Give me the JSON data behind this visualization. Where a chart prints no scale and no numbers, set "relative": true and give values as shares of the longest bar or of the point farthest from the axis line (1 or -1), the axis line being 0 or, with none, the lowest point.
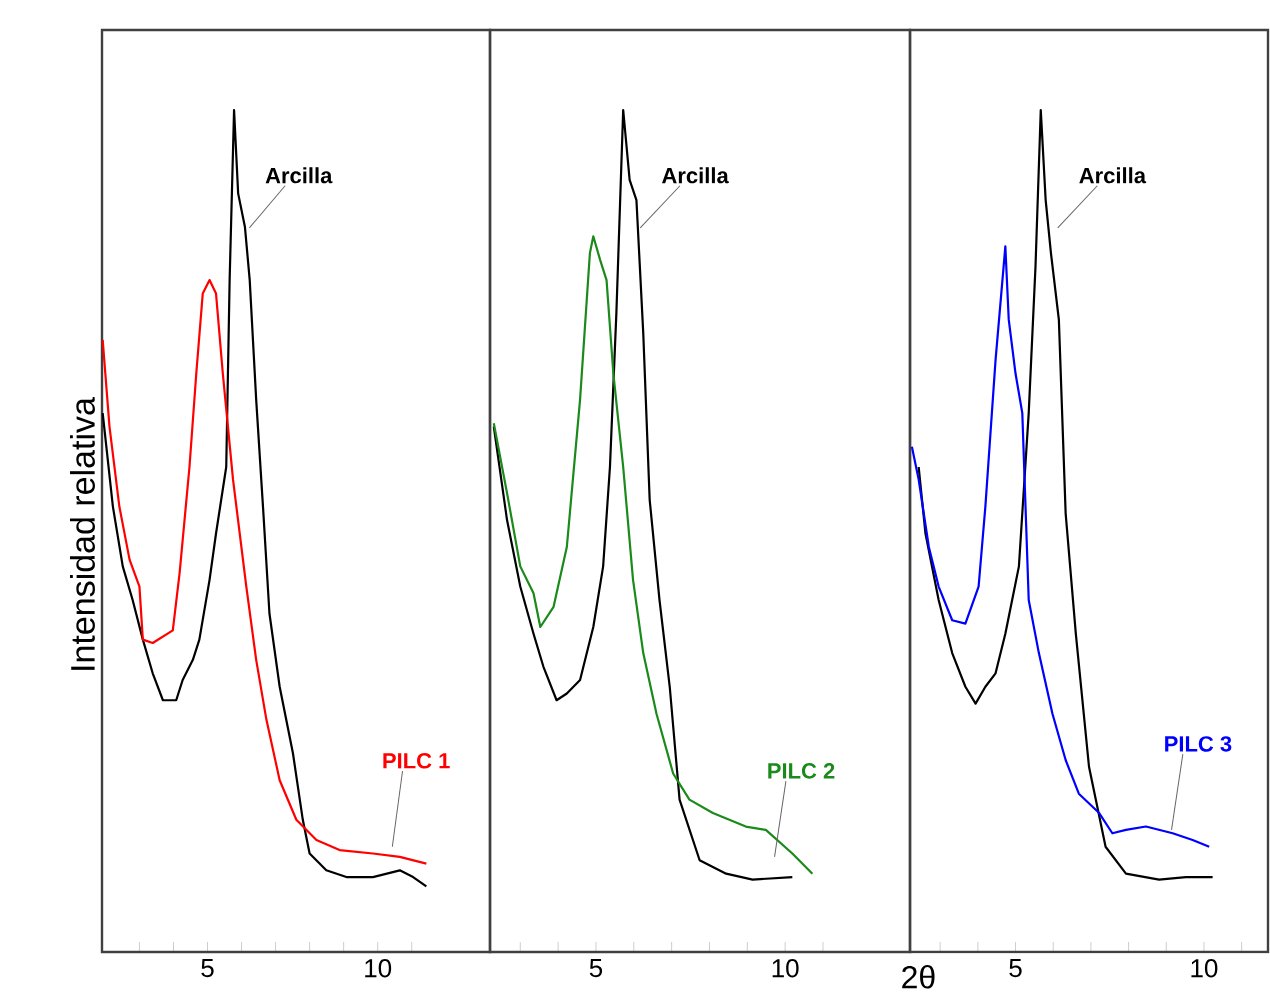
{
  "chart_data": [
    {
      "type": "line",
      "relative": true,
      "ylabel": "Intensidad relativa",
      "xlim": [
        1.9,
        13.3
      ],
      "xticks": [
        {
          "value": 3,
          "label": null
        },
        {
          "value": 4,
          "label": null
        },
        5,
        {
          "value": 6,
          "label": null
        },
        {
          "value": 7,
          "label": null
        },
        {
          "value": 8,
          "label": null
        },
        {
          "value": 9,
          "label": null
        },
        10,
        {
          "value": 11,
          "label": null
        }
      ],
      "series": [
        {
          "name": "Arcilla",
          "color": "#000000",
          "x": [
            1.92,
            2.22,
            2.51,
            2.8,
            3.1,
            3.39,
            3.69,
            4.08,
            4.27,
            4.57,
            4.76,
            5.06,
            5.25,
            5.55,
            5.65,
            5.78,
            5.9,
            6.1,
            6.24,
            6.43,
            6.63,
            6.82,
            7.12,
            7.51,
            7.8,
            8.0,
            8.49,
            9.08,
            9.86,
            10.65,
            11.04,
            11.43
          ],
          "values": [
            0.64,
            0.529,
            0.458,
            0.418,
            0.371,
            0.331,
            0.299,
            0.299,
            0.323,
            0.347,
            0.371,
            0.442,
            0.497,
            0.576,
            0.798,
            1.0,
            0.901,
            0.861,
            0.798,
            0.656,
            0.529,
            0.402,
            0.315,
            0.236,
            0.157,
            0.117,
            0.097,
            0.089,
            0.089,
            0.097,
            0.089,
            0.078
          ]
        },
        {
          "name": "PILC 1",
          "color": "#ff0000",
          "x": [
            1.92,
            2.12,
            2.41,
            2.71,
            3.0,
            3.1,
            3.39,
            3.98,
            4.18,
            4.47,
            4.67,
            4.86,
            5.06,
            5.25,
            5.45,
            5.75,
            6.14,
            6.43,
            6.73,
            7.12,
            7.61,
            8.2,
            8.88,
            9.86,
            10.65,
            11.43
          ],
          "values": [
            0.727,
            0.624,
            0.529,
            0.466,
            0.434,
            0.371,
            0.367,
            0.382,
            0.45,
            0.576,
            0.687,
            0.782,
            0.798,
            0.782,
            0.687,
            0.561,
            0.434,
            0.347,
            0.276,
            0.204,
            0.157,
            0.133,
            0.121,
            0.117,
            0.113,
            0.105
          ]
        }
      ]
    },
    {
      "type": "line",
      "relative": true,
      "xlabel": "2θ",
      "xlim": [
        2.2,
        13.3
      ],
      "xticks": [
        {
          "value": 3,
          "label": null
        },
        {
          "value": 4,
          "label": null
        },
        5,
        {
          "value": 6,
          "label": null
        },
        {
          "value": 7,
          "label": null
        },
        {
          "value": 8,
          "label": null
        },
        {
          "value": 9,
          "label": null
        },
        10,
        {
          "value": 11,
          "label": null
        }
      ],
      "series": [
        {
          "name": "Arcilla",
          "color": "#000000",
          "x": [
            2.3,
            2.65,
            3.0,
            3.35,
            3.61,
            3.96,
            4.23,
            4.58,
            4.93,
            5.19,
            5.37,
            5.54,
            5.72,
            5.89,
            6.07,
            6.25,
            6.42,
            6.68,
            6.95,
            7.21,
            7.74,
            8.44,
            9.14,
            10.19
          ],
          "values": [
            0.624,
            0.513,
            0.434,
            0.378,
            0.339,
            0.299,
            0.307,
            0.323,
            0.386,
            0.458,
            0.576,
            0.759,
            1.0,
            0.917,
            0.893,
            0.735,
            0.537,
            0.418,
            0.315,
            0.181,
            0.109,
            0.093,
            0.086,
            0.089
          ]
        },
        {
          "name": "PILC 2",
          "color": "#1a8a1a",
          "x": [
            2.3,
            2.65,
            3.0,
            3.35,
            3.53,
            3.88,
            4.23,
            4.58,
            4.84,
            4.93,
            5.11,
            5.28,
            5.46,
            5.72,
            5.98,
            6.25,
            6.6,
            7.04,
            7.47,
            8.09,
            8.96,
            9.49,
            10.19,
            10.72
          ],
          "values": [
            0.628,
            0.545,
            0.458,
            0.426,
            0.386,
            0.41,
            0.481,
            0.656,
            0.83,
            0.85,
            0.822,
            0.798,
            0.687,
            0.576,
            0.442,
            0.355,
            0.283,
            0.212,
            0.181,
            0.165,
            0.149,
            0.145,
            0.117,
            0.093
          ]
        }
      ]
    },
    {
      "type": "line",
      "relative": true,
      "xlim": [
        2.2,
        11.7
      ],
      "xticks": [
        {
          "value": 3,
          "label": null
        },
        {
          "value": 4,
          "label": null
        },
        5,
        {
          "value": 6,
          "label": null
        },
        {
          "value": 7,
          "label": null
        },
        {
          "value": 8,
          "label": null
        },
        {
          "value": 9,
          "label": null
        },
        10,
        {
          "value": 11,
          "label": null
        }
      ],
      "series": [
        {
          "name": "Arcilla",
          "color": "#000000",
          "x": [
            2.43,
            2.61,
            2.96,
            3.32,
            3.67,
            3.94,
            4.2,
            4.47,
            4.73,
            5.09,
            5.35,
            5.53,
            5.67,
            5.8,
            5.94,
            6.15,
            6.33,
            6.6,
            6.95,
            7.39,
            7.93,
            8.81,
            9.52,
            10.23
          ],
          "values": [
            0.576,
            0.497,
            0.418,
            0.355,
            0.315,
            0.295,
            0.315,
            0.331,
            0.378,
            0.458,
            0.64,
            0.814,
            1.0,
            0.893,
            0.83,
            0.751,
            0.521,
            0.378,
            0.22,
            0.125,
            0.093,
            0.086,
            0.089,
            0.089
          ]
        },
        {
          "name": "PILC 3",
          "color": "#0000ff",
          "x": [
            2.25,
            2.43,
            2.7,
            2.96,
            3.32,
            3.67,
            4.02,
            4.2,
            4.47,
            4.73,
            4.82,
            5.0,
            5.18,
            5.35,
            5.62,
            5.98,
            6.33,
            6.68,
            7.22,
            7.57,
            7.93,
            8.46,
            9.17,
            9.7,
            10.14
          ],
          "values": [
            0.6,
            0.561,
            0.481,
            0.434,
            0.394,
            0.39,
            0.434,
            0.529,
            0.703,
            0.838,
            0.751,
            0.687,
            0.64,
            0.418,
            0.355,
            0.283,
            0.228,
            0.188,
            0.165,
            0.141,
            0.145,
            0.149,
            0.141,
            0.133,
            0.125
          ]
        }
      ]
    }
  ]
}
